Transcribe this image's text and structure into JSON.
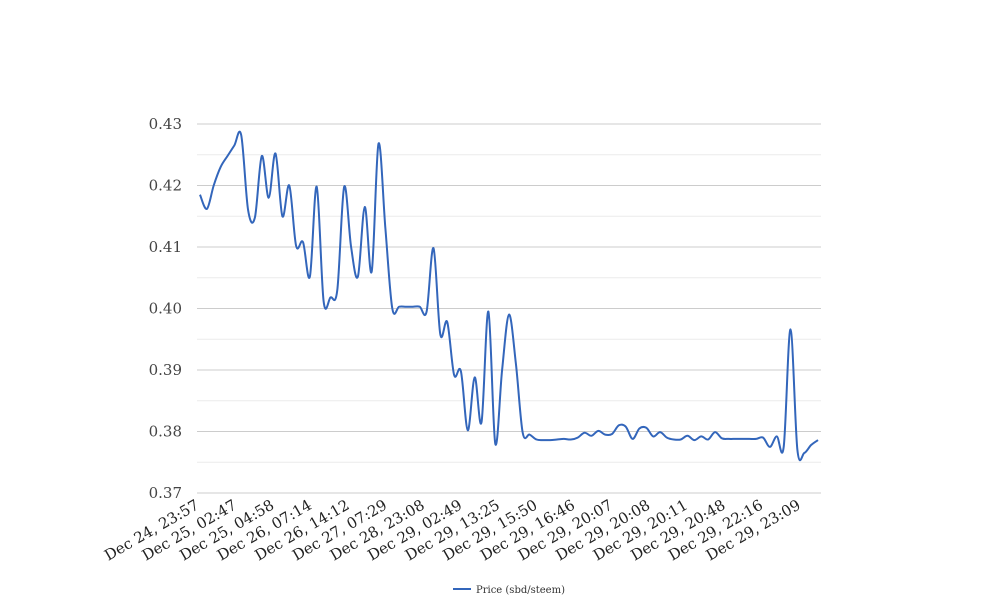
{
  "chart_data": {
    "type": "line",
    "title": "",
    "xlabel": "",
    "ylabel": "",
    "ylim": [
      0.37,
      0.43
    ],
    "yticks": [
      "0.37",
      "0.38",
      "0.39",
      "0.40",
      "0.41",
      "0.42",
      "0.43"
    ],
    "grid": true,
    "legend_position": "bottom",
    "x_tick_labels": [
      "Dec 24, 23:57",
      "Dec 25, 02:47",
      "Dec 25, 04:58",
      "Dec 26, 07:14",
      "Dec 26, 14:12",
      "Dec 27, 07:29",
      "Dec 28, 23:08",
      "Dec 29, 02:49",
      "Dec 29, 13:25",
      "Dec 29, 15:50",
      "Dec 29, 16:46",
      "Dec 29, 20:07",
      "Dec 29, 20:08",
      "Dec 29, 20:11",
      "Dec 29, 20:48",
      "Dec 29, 22:16",
      "Dec 29, 23:09"
    ],
    "series": [
      {
        "name": "Price (sbd/steem)",
        "color": "#3366bb",
        "values": [
          0.4185,
          0.4162,
          0.42,
          0.423,
          0.4248,
          0.4265,
          0.4282,
          0.416,
          0.4148,
          0.4248,
          0.418,
          0.4252,
          0.415,
          0.42,
          0.4102,
          0.4108,
          0.4052,
          0.4198,
          0.4012,
          0.4018,
          0.403,
          0.4198,
          0.41,
          0.4052,
          0.4165,
          0.406,
          0.4268,
          0.413,
          0.4,
          0.4003,
          0.4003,
          0.4003,
          0.4003,
          0.3995,
          0.4098,
          0.3958,
          0.3978,
          0.3892,
          0.3898,
          0.3802,
          0.3888,
          0.3815,
          0.3995,
          0.378,
          0.39,
          0.399,
          0.391,
          0.3798,
          0.3795,
          0.3787,
          0.3786,
          0.3786,
          0.3787,
          0.3788,
          0.3787,
          0.379,
          0.3798,
          0.3793,
          0.3801,
          0.3795,
          0.3796,
          0.381,
          0.3808,
          0.3788,
          0.3805,
          0.3806,
          0.3792,
          0.3799,
          0.379,
          0.3787,
          0.3787,
          0.3793,
          0.3786,
          0.3792,
          0.3787,
          0.3799,
          0.3789,
          0.3788,
          0.3788,
          0.3788,
          0.3788,
          0.3788,
          0.379,
          0.3775,
          0.3792,
          0.3775,
          0.3966,
          0.377,
          0.3765,
          0.3778,
          0.3786
        ]
      }
    ]
  }
}
